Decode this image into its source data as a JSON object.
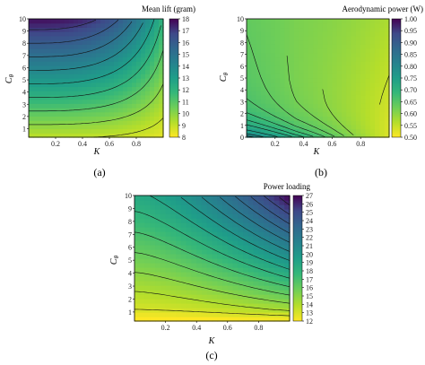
{
  "chart_data": [
    {
      "type": "heatmap",
      "panel_label": "(a)",
      "colorbar_title": "Mean lift (gram)",
      "xlabel": "K",
      "ylabel_main": "C",
      "ylabel_sub": "θ",
      "xlim": [
        0,
        1
      ],
      "ylim": [
        0.3,
        10
      ],
      "xticks": [
        "0.2",
        "0.4",
        "0.6",
        "0.8"
      ],
      "yticks": [
        "1",
        "2",
        "3",
        "4",
        "5",
        "6",
        "7",
        "8",
        "9",
        "10"
      ],
      "colorbar_range": [
        8,
        18
      ],
      "colorbar_ticks": [
        "8",
        "9",
        "10",
        "11",
        "12",
        "13",
        "14",
        "15",
        "16",
        "17",
        "18"
      ],
      "contour_levels": [
        9,
        10,
        11,
        12,
        13,
        14,
        15,
        16,
        17
      ],
      "colormap": "viridis-reversed"
    },
    {
      "type": "heatmap",
      "panel_label": "(b)",
      "colorbar_title": "Aerodynamic power (W)",
      "xlabel": "K",
      "ylabel_main": "C",
      "ylabel_sub": "θ",
      "xlim": [
        0,
        1
      ],
      "ylim": [
        0,
        10
      ],
      "xticks": [
        "0.2",
        "0.4",
        "0.6",
        "0.8"
      ],
      "yticks": [
        "0",
        "1",
        "2",
        "3",
        "4",
        "5",
        "6",
        "7",
        "8",
        "9",
        "10"
      ],
      "colorbar_range": [
        0.5,
        1.0
      ],
      "colorbar_ticks": [
        "0.50",
        "0.55",
        "0.60",
        "0.65",
        "0.70",
        "0.75",
        "0.80",
        "0.85",
        "0.90",
        "0.95",
        "1.00"
      ],
      "contour_levels": [
        0.55,
        0.6,
        0.62,
        0.64,
        0.66,
        0.68,
        0.7,
        0.72,
        0.75,
        0.78,
        0.8
      ],
      "colormap": "viridis-reversed"
    },
    {
      "type": "heatmap",
      "panel_label": "(c)",
      "colorbar_title": "Power loading",
      "xlabel": "K",
      "ylabel_main": "C",
      "ylabel_sub": "θ",
      "xlim": [
        0,
        1
      ],
      "ylim": [
        0.3,
        10
      ],
      "xticks": [
        "0.2",
        "0.4",
        "0.6",
        "0.8"
      ],
      "yticks": [
        "1",
        "2",
        "3",
        "4",
        "5",
        "6",
        "7",
        "8",
        "9",
        "10"
      ],
      "colorbar_range": [
        12,
        27
      ],
      "colorbar_ticks": [
        "12",
        "13",
        "14",
        "15",
        "16",
        "17",
        "18",
        "19",
        "20",
        "21",
        "22",
        "23",
        "24",
        "25",
        "26",
        "27"
      ],
      "contour_levels": [
        13,
        14,
        15,
        16,
        17,
        18,
        19,
        20,
        21,
        22,
        23,
        24,
        25,
        26
      ],
      "colormap": "viridis-reversed"
    }
  ]
}
